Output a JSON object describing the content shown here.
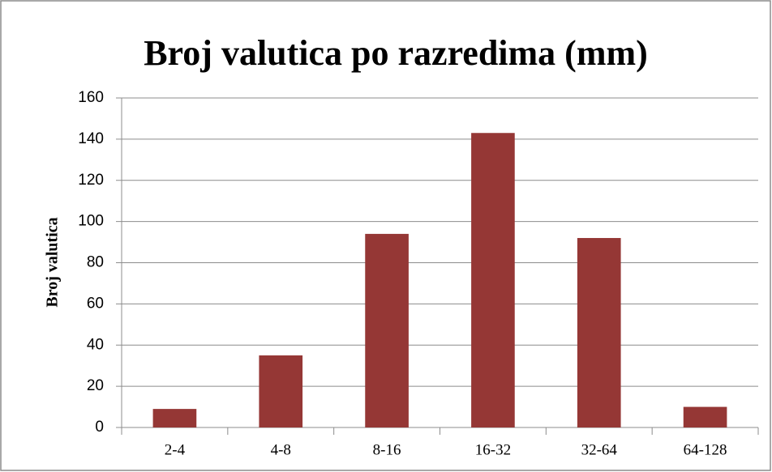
{
  "chart_data": {
    "type": "bar",
    "title": "Broj valutica po razredima (mm)",
    "y_label": "Broj valutica",
    "categories": [
      "2-4",
      "4-8",
      "8-16",
      "16-32",
      "32-64",
      "64-128"
    ],
    "values": [
      9,
      35,
      94,
      143,
      92,
      10
    ],
    "color": "#953735",
    "ylim": [
      0,
      160
    ],
    "yticks": [
      0,
      20,
      40,
      60,
      80,
      100,
      120,
      140,
      160
    ],
    "grid": true
  }
}
